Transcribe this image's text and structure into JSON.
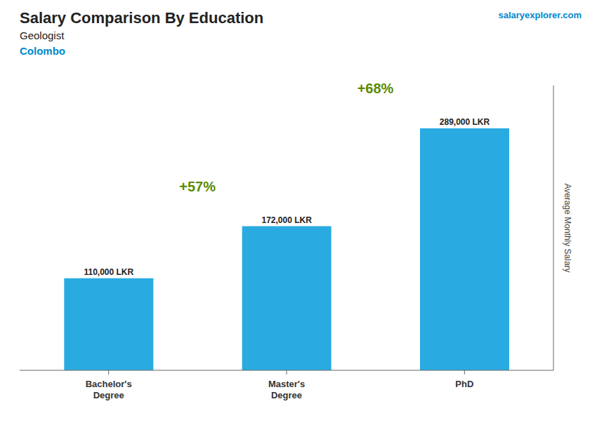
{
  "chart_data": {
    "type": "bar",
    "title": "Salary Comparison By Education",
    "subtitle": [
      "Geologist",
      "Colombo"
    ],
    "watermark": "salaryexplorer.com",
    "y_label": "Average Monthly Salary",
    "categories": [
      "Bachelor's\nDegree",
      "Master's\nDegree",
      "PhD"
    ],
    "values": [
      110000,
      172000,
      289000
    ],
    "value_labels": [
      "110,000 LKR",
      "172,000 LKR",
      "289,000 LKR"
    ],
    "data_labels": true,
    "annotations": [
      "+57%",
      "+68%"
    ],
    "color": "#29ABE2",
    "ylim": [
      0,
      340000
    ],
    "tick_labels": "x",
    "grid": false
  }
}
